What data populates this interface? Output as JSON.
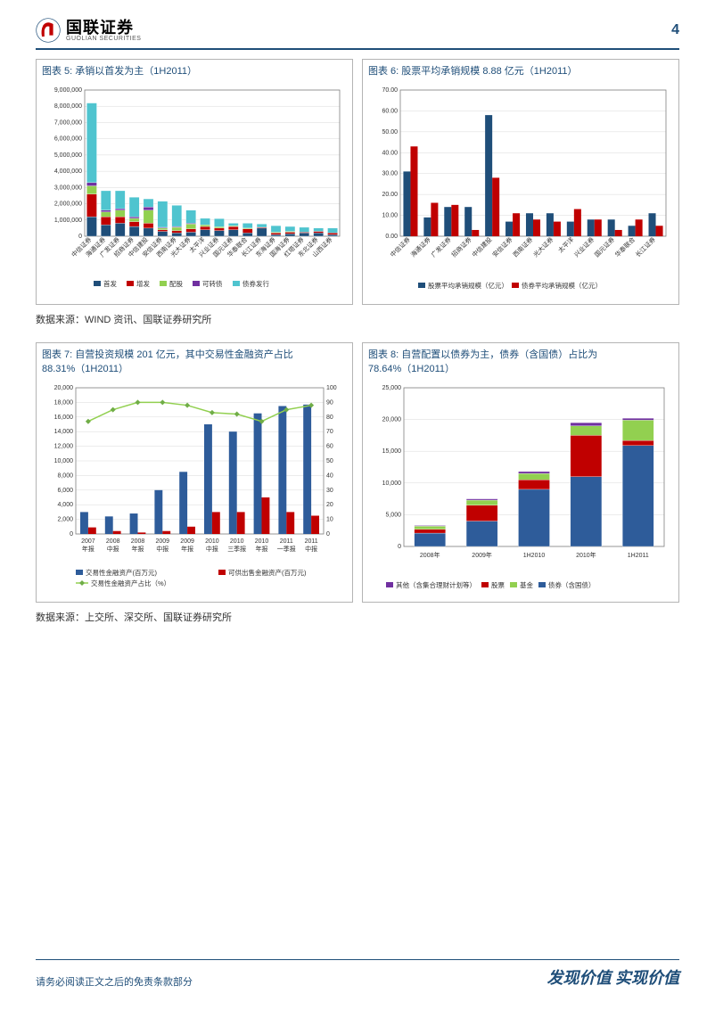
{
  "header": {
    "logo_cn": "国联证券",
    "logo_en": "GUOLIAN SECURITIES",
    "page_num": "4"
  },
  "chart5": {
    "type": "stacked-bar",
    "title": "图表 5:  承销以首发为主（1H2011）",
    "ylim": [
      0,
      9000000
    ],
    "ytick_step": 1000000,
    "ylabels": [
      "0",
      "1,000,000",
      "2,000,000",
      "3,000,000",
      "4,000,000",
      "5,000,000",
      "6,000,000",
      "7,000,000",
      "8,000,000",
      "9,000,000"
    ],
    "background_color": "#ffffff",
    "grid_color": "#d9d9d9",
    "border_color": "#808080",
    "categories": [
      "中信证券",
      "海通证券",
      "广发证券",
      "招商证券",
      "中信建投",
      "安信证券",
      "西南证券",
      "光大证券",
      "太平洋",
      "兴业证券",
      "国元证券",
      "华泰联合",
      "长江证券",
      "东海证券",
      "国海证券",
      "红塔证券",
      "东北证券",
      "山西证券"
    ],
    "series": [
      {
        "name": "首发",
        "color": "#1f4e79",
        "values": [
          1200000,
          700000,
          800000,
          600000,
          500000,
          300000,
          200000,
          250000,
          400000,
          350000,
          400000,
          200000,
          500000,
          100000,
          150000,
          200000,
          200000,
          100000
        ]
      },
      {
        "name": "增发",
        "color": "#c00000",
        "values": [
          1400000,
          500000,
          400000,
          300000,
          300000,
          100000,
          150000,
          200000,
          200000,
          150000,
          200000,
          250000,
          50000,
          100000,
          100000,
          50000,
          100000,
          100000
        ]
      },
      {
        "name": "配股",
        "color": "#92d050",
        "values": [
          500000,
          300000,
          400000,
          200000,
          800000,
          100000,
          200000,
          300000,
          100000,
          80000,
          50000,
          50000,
          0,
          50000,
          50000,
          0,
          0,
          0
        ]
      },
      {
        "name": "可转债",
        "color": "#7030a0",
        "values": [
          200000,
          100000,
          100000,
          100000,
          200000,
          50000,
          50000,
          50000,
          0,
          0,
          0,
          0,
          0,
          0,
          0,
          0,
          0,
          0
        ]
      },
      {
        "name": "债券发行",
        "color": "#4fc4cf",
        "values": [
          4900000,
          1200000,
          1100000,
          1200000,
          500000,
          1600000,
          1300000,
          800000,
          400000,
          500000,
          150000,
          300000,
          200000,
          400000,
          300000,
          300000,
          200000,
          300000
        ]
      }
    ],
    "legend_labels": [
      "首发",
      "增发",
      "配股",
      "可转债",
      "债券发行"
    ],
    "label_fontsize": 7
  },
  "chart6": {
    "type": "grouped-bar",
    "title": "图表 6:  股票平均承销规模 8.88 亿元（1H2011）",
    "ylim": [
      0,
      70
    ],
    "ytick_step": 10,
    "ylabels": [
      "0.00",
      "10.00",
      "20.00",
      "30.00",
      "40.00",
      "50.00",
      "60.00",
      "70.00"
    ],
    "background_color": "#ffffff",
    "grid_color": "#d9d9d9",
    "border_color": "#808080",
    "categories": [
      "中信证券",
      "海通证券",
      "广发证券",
      "招商证券",
      "中信建投",
      "安信证券",
      "西南证券",
      "光大证券",
      "太平洋",
      "兴业证券",
      "国元证券",
      "华泰联合",
      "长江证券"
    ],
    "series": [
      {
        "name": "股票平均承销规模（亿元）",
        "color": "#1f4e79",
        "values": [
          31,
          9,
          14,
          14,
          58,
          7,
          11,
          11,
          7,
          8,
          8,
          5,
          11
        ]
      },
      {
        "name": "债券平均承销规模（亿元）",
        "color": "#c00000",
        "values": [
          43,
          16,
          15,
          3,
          28,
          11,
          8,
          7,
          13,
          8,
          3,
          8,
          5
        ]
      }
    ],
    "legend_labels": [
      "股票平均承销规模（亿元）",
      "债券平均承销规模（亿元）"
    ],
    "label_fontsize": 7
  },
  "source1": "数据来源：WIND 资讯、国联证券研究所",
  "chart7": {
    "type": "bar-line",
    "title": "图表 7:  自营投资规模 201 亿元，其中交易性金融资产占比 88.31%（1H2011）",
    "ylim_left": [
      0,
      20000
    ],
    "ytick_step_left": 2000,
    "ylabels_left": [
      "0",
      "2,000",
      "4,000",
      "6,000",
      "8,000",
      "10,000",
      "12,000",
      "14,000",
      "16,000",
      "18,000",
      "20,000"
    ],
    "ylim_right": [
      0,
      100
    ],
    "ytick_step_right": 10,
    "ylabels_right": [
      "0",
      "10",
      "20",
      "30",
      "40",
      "50",
      "60",
      "70",
      "80",
      "90",
      "100"
    ],
    "background_color": "#ffffff",
    "grid_color": "#d9d9d9",
    "border_color": "#808080",
    "categories": [
      "2007\n年报",
      "2008\n中报",
      "2008\n年报",
      "2009\n中报",
      "2009\n年报",
      "2010\n中报",
      "2010\n三季报",
      "2010\n年报",
      "2011\n一季报",
      "2011\n中报"
    ],
    "bar_series": [
      {
        "name": "交易性金融资产(百万元)",
        "color": "#2e5c9a",
        "values": [
          3000,
          2400,
          2800,
          6000,
          8500,
          15000,
          14000,
          16500,
          17500,
          17700
        ]
      },
      {
        "name": "可供出售金融资产(百万元)",
        "color": "#c00000",
        "values": [
          900,
          400,
          200,
          400,
          1000,
          3000,
          3000,
          5000,
          3000,
          2500
        ]
      }
    ],
    "line_series": {
      "name": "交易性金融资产占比（%）",
      "color": "#92d050",
      "marker_color": "#70ad47",
      "values": [
        77,
        85,
        90,
        90,
        88,
        83,
        82,
        77,
        85,
        88
      ]
    },
    "legend_labels": [
      "交易性金融资产(百万元)",
      "可供出售金融资产(百万元)",
      "交易性金融资产占比（%）"
    ],
    "label_fontsize": 7
  },
  "chart8": {
    "type": "stacked-bar",
    "title": "图表 8:  自营配置以债券为主，债券（含国债）占比为 78.64%（1H2011）",
    "ylim": [
      0,
      25000
    ],
    "ytick_step": 5000,
    "ylabels": [
      "0",
      "5,000",
      "10,000",
      "15,000",
      "20,000",
      "25,000"
    ],
    "background_color": "#ffffff",
    "grid_color": "#d9d9d9",
    "border_color": "#808080",
    "categories": [
      "2008年",
      "2009年",
      "1H2010",
      "2010年",
      "1H2011"
    ],
    "series": [
      {
        "name": "其他（含集合理财计划等）",
        "color": "#7030a0",
        "values": [
          100,
          200,
          300,
          500,
          300
        ]
      },
      {
        "name": "股票",
        "color": "#c00000",
        "values": [
          600,
          2500,
          1500,
          6500,
          800
        ]
      },
      {
        "name": "基金",
        "color": "#92d050",
        "values": [
          500,
          800,
          1000,
          1500,
          3200
        ]
      },
      {
        "name": "债券（含国债）",
        "color": "#2e5c9a",
        "values": [
          2100,
          4000,
          9000,
          11000,
          15900
        ]
      }
    ],
    "legend_labels": [
      "其他（含集合理财计划等）",
      "股票",
      "基金",
      "债券（含国债）"
    ],
    "label_fontsize": 7
  },
  "source2": "数据来源：上交所、深交所、国联证券研究所",
  "footer": {
    "left": "请务必阅读正文之后的免责条款部分",
    "right": "发现价值  实现价值"
  }
}
